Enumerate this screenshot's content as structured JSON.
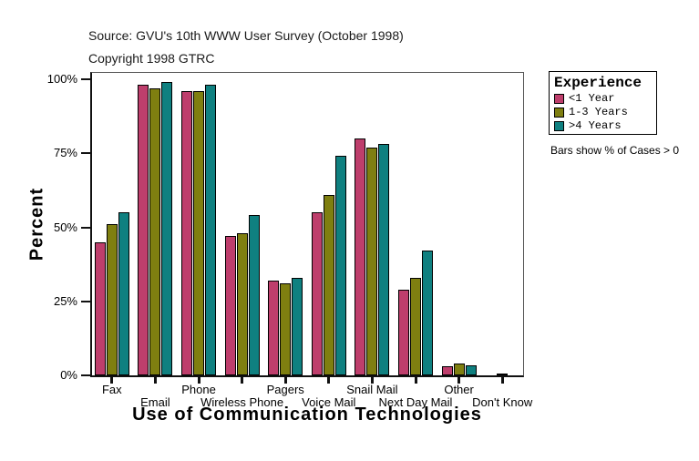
{
  "header": {
    "source": "Source: GVU's 10th WWW User Survey (October 1998)",
    "copyright": "Copyright 1998 GTRC"
  },
  "chart_data": {
    "type": "bar",
    "title": "Use of Communication Technologies",
    "xlabel": "Use of Communication Technologies",
    "ylabel": "Percent",
    "ylim": [
      0,
      104
    ],
    "grid": false,
    "legend_position": "top-right-outside",
    "legend_title": "Experience",
    "note": "Bars show % of Cases > 0",
    "y_ticks": [
      {
        "label": "0%",
        "value": 0
      },
      {
        "label": "25%",
        "value": 25
      },
      {
        "label": "50%",
        "value": 50
      },
      {
        "label": "75%",
        "value": 75
      },
      {
        "label": "100%",
        "value": 100
      }
    ],
    "categories": [
      "Fax",
      "Email",
      "Phone",
      "Wireless Phone",
      "Pagers",
      "Voice Mail",
      "Snail Mail",
      "Next Day Mail",
      "Other",
      "Don't Know"
    ],
    "series": [
      {
        "name": "<1 Year",
        "color": "#BE3E6C",
        "values": [
          45,
          98,
          96,
          47,
          32,
          55,
          80,
          29,
          3,
          0
        ]
      },
      {
        "name": "1-3 Years",
        "color": "#7F7F10",
        "values": [
          51,
          97,
          96,
          48,
          31,
          61,
          77,
          33,
          4,
          0.5
        ]
      },
      {
        "name": ">4 Years",
        "color": "#0F8080",
        "values": [
          55,
          99,
          98,
          54,
          33,
          74,
          78,
          42,
          3.5,
          0
        ]
      }
    ]
  }
}
